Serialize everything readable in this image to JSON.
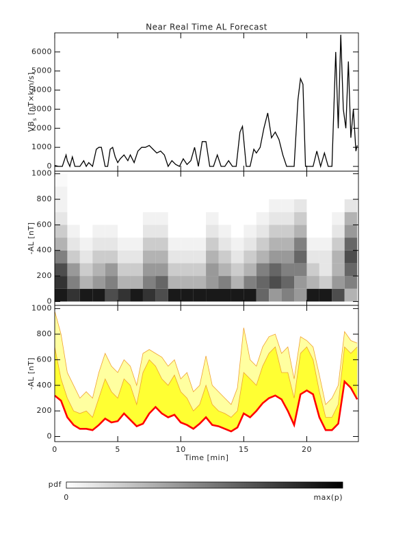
{
  "chart_data": [
    {
      "type": "line",
      "title": "Near Real Time AL Forecast",
      "ylabel": [
        "VB",
        "s",
        " [nT×km/s]"
      ],
      "color": "#000000",
      "xlim": [
        0,
        24.1
      ],
      "xticks": [
        0,
        5,
        10,
        15,
        20
      ],
      "xtick_labels": false,
      "ylim": [
        -250,
        7000
      ],
      "yticks": [
        0,
        1000,
        2000,
        3000,
        4000,
        5000,
        6000
      ],
      "x": [
        0,
        0.3,
        0.6,
        0.9,
        1.0,
        1.2,
        1.4,
        1.6,
        2.0,
        2.3,
        2.5,
        2.7,
        3.0,
        3.3,
        3.5,
        3.7,
        4.0,
        4.2,
        4.4,
        4.6,
        4.8,
        5.0,
        5.2,
        5.5,
        5.8,
        6.0,
        6.3,
        6.6,
        6.9,
        7.2,
        7.5,
        7.8,
        8.1,
        8.4,
        8.7,
        9.0,
        9.3,
        9.6,
        9.9,
        10.2,
        10.5,
        10.8,
        11.1,
        11.4,
        11.7,
        12.0,
        12.3,
        12.6,
        12.9,
        13.2,
        13.5,
        13.8,
        14.1,
        14.4,
        14.7,
        14.9,
        15.2,
        15.5,
        15.8,
        16.0,
        16.3,
        16.6,
        16.9,
        17.2,
        17.5,
        17.8,
        18.1,
        18.4,
        18.7,
        19.0,
        19.3,
        19.5,
        19.7,
        19.9,
        20.2,
        20.5,
        20.8,
        21.1,
        21.4,
        21.7,
        22.0,
        22.3,
        22.5,
        22.7,
        22.9,
        23.1,
        23.3,
        23.5,
        23.7,
        23.9,
        24.0
      ],
      "values": [
        50,
        0,
        0,
        600,
        300,
        0,
        500,
        0,
        0,
        300,
        0,
        200,
        0,
        900,
        1000,
        1000,
        0,
        0,
        900,
        1000,
        500,
        200,
        400,
        600,
        300,
        600,
        200,
        800,
        1000,
        1000,
        1100,
        900,
        700,
        800,
        600,
        0,
        300,
        100,
        0,
        400,
        100,
        300,
        1000,
        0,
        1300,
        1300,
        0,
        0,
        600,
        0,
        0,
        300,
        0,
        0,
        1800,
        2100,
        0,
        0,
        900,
        700,
        1000,
        2000,
        2800,
        1500,
        1800,
        1400,
        600,
        0,
        0,
        0,
        3500,
        4600,
        4300,
        0,
        0,
        0,
        800,
        0,
        700,
        0,
        0,
        6000,
        2000,
        6900,
        3000,
        2000,
        5500,
        1500,
        3000,
        800,
        1100
      ]
    },
    {
      "type": "heatmap",
      "ylabel": "-AL [nT]",
      "xlim": [
        0,
        24.1
      ],
      "xticks": [
        0,
        5,
        10,
        15,
        20
      ],
      "xtick_labels": false,
      "ylim": [
        -30,
        1020
      ],
      "yticks": [
        0,
        200,
        400,
        600,
        800,
        1000
      ],
      "x_bins": [
        0,
        1,
        2,
        3,
        4,
        5,
        6,
        7,
        8,
        9,
        10,
        11,
        12,
        13,
        14,
        15,
        16,
        17,
        18,
        19,
        20,
        21,
        22,
        23,
        24
      ],
      "y_bins": [
        0,
        100,
        200,
        300,
        400,
        500,
        600,
        700,
        800,
        900,
        1000
      ],
      "z": [
        [
          0.9,
          0.8,
          0.9,
          0.9,
          0.7,
          0.8,
          0.9,
          0.8,
          0.7,
          0.9,
          0.9,
          0.9,
          0.9,
          0.9,
          0.9,
          0.9,
          0.6,
          0.4,
          0.5,
          0.4,
          0.9,
          0.9,
          0.7,
          0.3
        ],
        [
          0.8,
          0.5,
          0.3,
          0.4,
          0.5,
          0.3,
          0.3,
          0.5,
          0.6,
          0.3,
          0.3,
          0.3,
          0.4,
          0.5,
          0.3,
          0.5,
          0.6,
          0.7,
          0.6,
          0.4,
          0.3,
          0.2,
          0.4,
          0.5
        ],
        [
          0.7,
          0.4,
          0.2,
          0.3,
          0.4,
          0.2,
          0.2,
          0.4,
          0.4,
          0.2,
          0.2,
          0.2,
          0.4,
          0.3,
          0.2,
          0.3,
          0.5,
          0.6,
          0.5,
          0.5,
          0.2,
          0.1,
          0.3,
          0.6
        ],
        [
          0.5,
          0.2,
          0.1,
          0.2,
          0.2,
          0.1,
          0.1,
          0.3,
          0.3,
          0.1,
          0.1,
          0.1,
          0.3,
          0.2,
          0.1,
          0.2,
          0.3,
          0.4,
          0.4,
          0.6,
          0.1,
          0.1,
          0.3,
          0.7
        ],
        [
          0.3,
          0.1,
          0.05,
          0.1,
          0.1,
          0.05,
          0.05,
          0.2,
          0.2,
          0.05,
          0.05,
          0.05,
          0.2,
          0.1,
          0.05,
          0.1,
          0.2,
          0.3,
          0.3,
          0.5,
          0.05,
          0.05,
          0.2,
          0.6
        ],
        [
          0.2,
          0.05,
          0,
          0.05,
          0.05,
          0,
          0,
          0.1,
          0.1,
          0,
          0,
          0,
          0.1,
          0.05,
          0,
          0.05,
          0.1,
          0.2,
          0.2,
          0.3,
          0,
          0,
          0.1,
          0.4
        ],
        [
          0.1,
          0,
          0,
          0,
          0,
          0,
          0,
          0.05,
          0.05,
          0,
          0,
          0,
          0.05,
          0,
          0,
          0,
          0.05,
          0.1,
          0.1,
          0.2,
          0,
          0,
          0.05,
          0.3
        ],
        [
          0.05,
          0,
          0,
          0,
          0,
          0,
          0,
          0,
          0,
          0,
          0,
          0,
          0,
          0,
          0,
          0,
          0,
          0.05,
          0.05,
          0.1,
          0,
          0,
          0,
          0.1
        ],
        [
          0.05,
          0,
          0,
          0,
          0,
          0,
          0,
          0,
          0,
          0,
          0,
          0,
          0,
          0,
          0,
          0,
          0,
          0,
          0,
          0,
          0,
          0,
          0,
          0
        ],
        [
          0.02,
          0,
          0,
          0,
          0,
          0,
          0,
          0,
          0,
          0,
          0,
          0,
          0,
          0,
          0,
          0,
          0,
          0,
          0,
          0,
          0,
          0,
          0,
          0
        ]
      ]
    },
    {
      "type": "band",
      "ylabel": "-AL [nT]",
      "xlabel": "Time [min]",
      "xlim": [
        0,
        24.1
      ],
      "xticks": [
        0,
        5,
        10,
        15,
        20
      ],
      "xtick_labels": true,
      "ylim": [
        -40,
        1025
      ],
      "yticks": [
        0,
        200,
        400,
        600,
        800,
        1000
      ],
      "x": [
        0,
        0.5,
        1,
        1.5,
        2,
        2.5,
        3,
        3.5,
        4,
        4.5,
        5,
        5.5,
        6,
        6.5,
        7,
        7.5,
        8,
        8.5,
        9,
        9.5,
        10,
        10.5,
        11,
        11.5,
        12,
        12.5,
        13,
        13.5,
        14,
        14.5,
        15,
        15.5,
        16,
        16.5,
        17,
        17.5,
        18,
        18.5,
        19,
        19.5,
        20,
        20.5,
        21,
        21.5,
        22,
        22.5,
        23,
        23.5,
        24
      ],
      "series": [
        {
          "color": "#ff0000",
          "values": [
            320,
            280,
            150,
            90,
            60,
            60,
            50,
            90,
            140,
            110,
            120,
            180,
            130,
            80,
            100,
            180,
            230,
            180,
            150,
            170,
            110,
            90,
            60,
            100,
            150,
            90,
            80,
            60,
            40,
            70,
            180,
            150,
            200,
            260,
            300,
            320,
            290,
            200,
            90,
            330,
            360,
            330,
            150,
            50,
            50,
            100,
            430,
            380,
            290
          ]
        },
        {
          "color": "#f0a030",
          "fill": "#ffff33",
          "values": [
            700,
            450,
            300,
            200,
            180,
            200,
            150,
            300,
            450,
            350,
            300,
            450,
            400,
            250,
            500,
            600,
            550,
            450,
            400,
            480,
            350,
            300,
            200,
            250,
            400,
            250,
            200,
            180,
            150,
            200,
            500,
            450,
            400,
            550,
            650,
            700,
            500,
            500,
            300,
            650,
            700,
            600,
            350,
            150,
            150,
            250,
            700,
            650,
            700
          ]
        },
        {
          "color": "#f0a030",
          "fill": "#ffffa0",
          "values": [
            980,
            800,
            500,
            400,
            300,
            350,
            300,
            500,
            650,
            550,
            500,
            600,
            550,
            400,
            650,
            680,
            650,
            620,
            550,
            600,
            450,
            500,
            350,
            400,
            630,
            400,
            350,
            300,
            250,
            380,
            850,
            600,
            550,
            700,
            780,
            800,
            650,
            700,
            450,
            780,
            750,
            700,
            480,
            250,
            300,
            400,
            820,
            750,
            730
          ]
        }
      ]
    }
  ],
  "colorbar": {
    "label": "pdf",
    "min_label": "0",
    "max_label": "max(p)"
  }
}
